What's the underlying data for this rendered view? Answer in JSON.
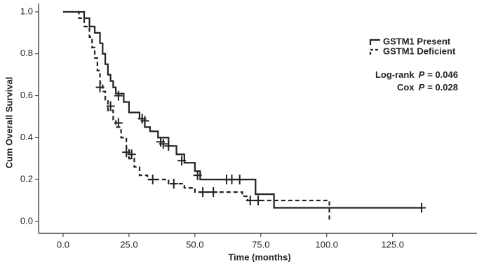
{
  "chart_data": {
    "type": "survival",
    "x_label": "Time  (months)",
    "y_label": "Cum Overall Survival",
    "xlim": [
      -9.3,
      157
    ],
    "ylim": [
      -0.057,
      1.04
    ],
    "xticks": [
      {
        "value": 0,
        "label": "0.0"
      },
      {
        "value": 25,
        "label": "25.0"
      },
      {
        "value": 50,
        "label": "50.0"
      },
      {
        "value": 75,
        "label": "75.0"
      },
      {
        "value": 100,
        "label": "100.0"
      },
      {
        "value": 125,
        "label": "125.0"
      }
    ],
    "yticks": [
      {
        "value": 0,
        "label": "0.0"
      },
      0.2,
      0.4,
      0.6,
      0.8,
      {
        "value": 1,
        "label": "1.0"
      }
    ],
    "legend": "upper right",
    "series": [
      {
        "name": "GSTM1 Present",
        "color": "#222222",
        "dash": "solid",
        "x": [
          0,
          8,
          10,
          12,
          14,
          15,
          16,
          17,
          18,
          19,
          20,
          23,
          25,
          29,
          31,
          33,
          36,
          40,
          43,
          46,
          50,
          52,
          73,
          80,
          136
        ],
        "values": [
          1.0,
          0.97,
          0.93,
          0.9,
          0.85,
          0.8,
          0.75,
          0.7,
          0.67,
          0.64,
          0.61,
          0.57,
          0.52,
          0.49,
          0.45,
          0.43,
          0.4,
          0.36,
          0.32,
          0.28,
          0.24,
          0.2,
          0.13,
          0.065,
          0.065
        ],
        "censor_x": [
          21,
          30,
          31,
          37,
          38,
          40,
          45,
          51,
          62,
          64,
          67,
          136
        ],
        "censor_values": [
          0.6,
          0.49,
          0.48,
          0.38,
          0.37,
          0.36,
          0.29,
          0.22,
          0.2,
          0.2,
          0.2,
          0.065
        ]
      },
      {
        "name": "GSTM1 Deficient",
        "color": "#222222",
        "dash": "dashed",
        "x": [
          0,
          6,
          8,
          10,
          11,
          12,
          13,
          14,
          15,
          16,
          17,
          19,
          20,
          22,
          24,
          25,
          27,
          29,
          32,
          40,
          46,
          50,
          68,
          70,
          101
        ],
        "values": [
          1.0,
          0.97,
          0.93,
          0.88,
          0.83,
          0.78,
          0.72,
          0.66,
          0.62,
          0.58,
          0.53,
          0.48,
          0.45,
          0.4,
          0.35,
          0.3,
          0.26,
          0.22,
          0.2,
          0.18,
          0.16,
          0.14,
          0.12,
          0.1,
          0.0
        ],
        "censor_x": [
          14,
          18,
          21,
          24,
          26,
          34,
          42,
          53,
          57,
          71,
          74
        ],
        "censor_values": [
          0.64,
          0.55,
          0.47,
          0.33,
          0.32,
          0.2,
          0.18,
          0.14,
          0.14,
          0.1,
          0.1
        ]
      }
    ],
    "annotations": [
      {
        "prefix": "Log-rank",
        "italic": "P",
        "suffix": "= 0.046"
      },
      {
        "prefix": "Cox",
        "italic": "P",
        "suffix": "= 0.028"
      }
    ]
  }
}
